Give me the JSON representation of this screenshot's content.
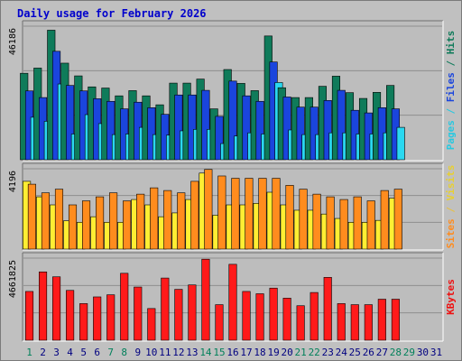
{
  "chart_data": [
    {
      "type": "bar",
      "title": "Daily usage for February 2026",
      "categories": [
        "1",
        "2",
        "3",
        "4",
        "5",
        "6",
        "7",
        "8",
        "9",
        "10",
        "11",
        "12",
        "13",
        "14",
        "15",
        "16",
        "17",
        "18",
        "19",
        "20",
        "21",
        "22",
        "23",
        "24",
        "25",
        "26",
        "27",
        "28",
        "29",
        "30",
        "31"
      ],
      "weekend_days": [
        "1",
        "7",
        "8",
        "14",
        "15",
        "21",
        "22",
        "28",
        "29"
      ],
      "ymax_label": "46186",
      "ylim": [
        0,
        46186
      ],
      "grid": true,
      "series": [
        {
          "name": "Hits",
          "color": "#0f7b5a",
          "values": [
            29900,
            31700,
            44800,
            33400,
            29000,
            25200,
            24800,
            22100,
            23900,
            22100,
            19000,
            26500,
            26500,
            27900,
            17600,
            31200,
            26400,
            23900,
            42800,
            24900,
            21500,
            21500,
            25400,
            28900,
            23200,
            21200,
            23300,
            25700,
            null,
            null,
            null
          ]
        },
        {
          "name": "Files",
          "color": "#1a45dd",
          "values": [
            23800,
            21500,
            37500,
            25700,
            23800,
            21100,
            20200,
            17600,
            19900,
            18000,
            15700,
            22400,
            22400,
            24000,
            15000,
            27200,
            22100,
            20200,
            33800,
            21700,
            18200,
            18200,
            20500,
            24000,
            17100,
            16200,
            18000,
            17600,
            null,
            null,
            null
          ]
        },
        {
          "name": "Pages",
          "color": "#2ad8f0",
          "values": [
            14700,
            13300,
            26200,
            8900,
            15600,
            12500,
            8700,
            8900,
            11200,
            8700,
            8500,
            10000,
            10500,
            10500,
            5600,
            8200,
            9300,
            8900,
            26700,
            10300,
            8700,
            8700,
            9300,
            9300,
            8900,
            8900,
            9300,
            11200,
            null,
            null,
            null
          ]
        }
      ]
    },
    {
      "type": "bar",
      "ymax_label": "4196",
      "ylim": [
        0,
        4196
      ],
      "grid": true,
      "series": [
        {
          "name": "Visits",
          "color": "#ffee33",
          "values": [
            3540,
            2730,
            2310,
            1480,
            1400,
            1690,
            1400,
            1400,
            2590,
            2310,
            1690,
            1890,
            2590,
            3970,
            1770,
            2310,
            2310,
            2390,
            2970,
            2310,
            2030,
            2030,
            1830,
            1600,
            1400,
            1400,
            1500,
            2660,
            null,
            null,
            null
          ]
        },
        {
          "name": "Sites",
          "color": "#ff8c1e",
          "values": [
            3390,
            2940,
            3130,
            2310,
            2520,
            2730,
            2940,
            2520,
            2870,
            3200,
            3060,
            2940,
            3540,
            4160,
            3820,
            3700,
            3700,
            3700,
            3700,
            3330,
            3130,
            2870,
            2730,
            2590,
            2730,
            2520,
            3060,
            3130,
            null,
            null,
            null
          ]
        }
      ]
    },
    {
      "type": "bar",
      "ymax_label": "4661825",
      "ylim": [
        0,
        4661825
      ],
      "grid": true,
      "series": [
        {
          "name": "KBytes",
          "color": "#ff1a1a",
          "values": [
            2770000,
            3880000,
            3600000,
            2830000,
            2080000,
            2460000,
            2580000,
            3800000,
            3020000,
            1800000,
            3530000,
            2890000,
            3140000,
            4600000,
            2020000,
            4310000,
            2770000,
            2640000,
            2960000,
            2390000,
            1960000,
            2710000,
            3570000,
            2080000,
            2020000,
            2020000,
            2330000,
            2330000,
            null,
            null,
            null
          ]
        }
      ]
    }
  ],
  "side_labels": {
    "top": [
      {
        "text": "Pages",
        "color": "#28c8e0"
      },
      {
        "text": " / ",
        "color": "#28c8e0"
      },
      {
        "text": "Files",
        "color": "#1a45dd"
      },
      {
        "text": " / ",
        "color": "#0f7b5a"
      },
      {
        "text": "Hits",
        "color": "#0f7b5a"
      }
    ],
    "middle": [
      {
        "text": "Sites",
        "color": "#ff8c1e"
      },
      {
        "text": " / ",
        "color": "#e8c040"
      },
      {
        "text": "Visits",
        "color": "#e8d030"
      }
    ],
    "bottom": [
      {
        "text": "KBytes",
        "color": "#ee1111"
      }
    ]
  },
  "colors": {
    "title": "#0000cc",
    "background": "#c0c0c0",
    "plot_bg": "#bdbdbd",
    "weekday_label": "#000080",
    "weekend_label": "#00805a"
  }
}
